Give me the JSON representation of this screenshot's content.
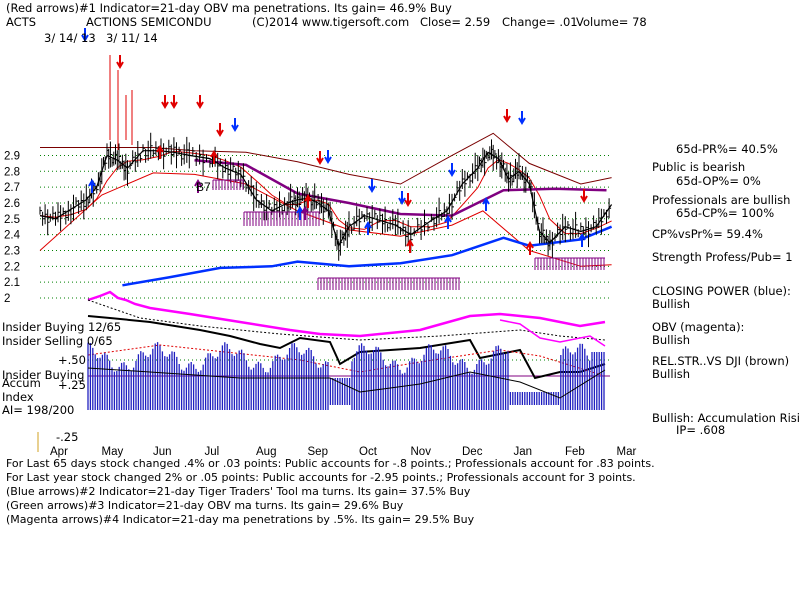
{
  "header": {
    "line1": "(Red arrows)#1 Indicator=21-day OBV ma penetrations. Its gain= 46.9% Buy",
    "ticker": "ACTS",
    "company": "ACTIONS SEMICONDU",
    "copyright": "(C)2014 www.tigersoft.com",
    "close": "Close=  2.59",
    "change": "Change= .01",
    "volume": "Volume= 78",
    "start_date": "3/ 14/ 13",
    "end_date": "3/ 11/ 14"
  },
  "colors": {
    "price": "#000000",
    "red": "#e00000",
    "blue": "#0030ff",
    "magenta": "#ff00ff",
    "purple": "#800080",
    "maroon": "#7a0000",
    "grid": "#008000",
    "accum": "#2020c0"
  },
  "left_labels": {
    "insider_buying": "Insider Buying 12/65",
    "insider_selling": "Insider Selling 0/65",
    "plus50": "+.50",
    "insider_buying2": "Insider Buying",
    "accum": "Accum",
    "plus25": "+.25",
    "index": "Index",
    "ai": "AI= 198/200",
    "minus25": "-.25"
  },
  "chart_labels": {
    "b7": "B7"
  },
  "right_panel": {
    "pr": "65d-PR%= 40.5%",
    "public": "Public is bearish",
    "op": "65d-OP%= 0%",
    "professionals": "Professionals are bullish",
    "cp": "65d-CP%= 100%",
    "cpvspr": "CP%vsPr%=  59.4%",
    "strength": "Strength Profess/Pub= 1",
    "closing_power": "CLOSING POWER (blue):",
    "closing_power_val": "Bullish",
    "obv": "OBV (magenta):",
    "obv_val": "Bullish",
    "relstr": "REL.STR..VS DJI (brown)",
    "relstr_val": "Bullish",
    "accum_risi": "Bullish: Accumulation Risi",
    "ip": "IP=  .608"
  },
  "footer": {
    "line1": "For Last 65 days stock changed  .4% or  .03 points:  Public accounts for -.8 points.;  Professionals account for  .83 points.",
    "line2": "For Last year stock changed  2% or  .05 points:  Public accounts for -2.95 points.;  Professionals account for  3 points.",
    "line3": "(Blue arrows)#2 Indicator=21-day Tiger Traders' Tool ma turns. Its gain= 37.5% Buy",
    "line4": "(Green arrows)#3 Indicator=21-day OBV ma turns. Its gain= 29.6% Buy",
    "line5": "(Magenta arrows)#4 Indicator=21-day ma penetrations by .5%. Its gain= 29.5% Buy"
  },
  "chart_data": {
    "type": "line",
    "title": "ACTS  ACTIONS SEMICONDU",
    "x_labels": [
      "Apr",
      "May",
      "Jun",
      "Jul",
      "Aug",
      "Sep",
      "Oct",
      "Nov",
      "Dec",
      "Jan",
      "Feb",
      "Mar"
    ],
    "y_ticks": [
      2.9,
      2.8,
      2.7,
      2.6,
      2.5,
      2.4,
      2.3,
      2.2,
      2.1,
      2
    ],
    "ylim": [
      2.0,
      2.96
    ],
    "grid": true,
    "series": [
      {
        "name": "price",
        "x": [
          0,
          0.3,
          0.6,
          0.9,
          1.1,
          1.3,
          1.5,
          1.7,
          2.0,
          2.3,
          2.6,
          2.9,
          3.3,
          3.6,
          3.9,
          4.2,
          4.5,
          4.8,
          5.0,
          5.2,
          5.4,
          5.6,
          5.8,
          6.0,
          6.3,
          6.6,
          6.9,
          7.2,
          7.6,
          7.9,
          8.2,
          8.5,
          8.7,
          8.9,
          9.1,
          9.3,
          9.5,
          9.7,
          9.9,
          10.2,
          10.5,
          10.8,
          11.1
        ],
        "values": [
          2.52,
          2.5,
          2.56,
          2.62,
          2.7,
          2.9,
          2.87,
          2.82,
          2.93,
          2.93,
          2.92,
          2.9,
          2.88,
          2.82,
          2.78,
          2.62,
          2.55,
          2.6,
          2.62,
          2.63,
          2.6,
          2.55,
          2.33,
          2.45,
          2.52,
          2.49,
          2.46,
          2.4,
          2.49,
          2.55,
          2.72,
          2.82,
          2.92,
          2.88,
          2.75,
          2.8,
          2.72,
          2.42,
          2.35,
          2.45,
          2.42,
          2.45,
          2.59
        ]
      },
      {
        "name": "21-day ma (purple)",
        "x": [
          3.0,
          4.0,
          5.0,
          6.0,
          7.0,
          8.0,
          9.0,
          10.0,
          11.0
        ],
        "values": [
          2.87,
          2.84,
          2.66,
          2.6,
          2.53,
          2.52,
          2.68,
          2.69,
          2.68
        ]
      },
      {
        "name": "band upper",
        "x": [
          0,
          1.2,
          2.2,
          3.0,
          4.0,
          5.0,
          6.0,
          7.0,
          8.0,
          8.8,
          9.5,
          10.5,
          11.1
        ],
        "values": [
          2.95,
          2.95,
          2.95,
          2.93,
          2.92,
          2.86,
          2.78,
          2.72,
          2.9,
          3.04,
          2.85,
          2.72,
          2.76
        ]
      },
      {
        "name": "band lower",
        "x": [
          0,
          1.2,
          2.2,
          3.0,
          4.0,
          5.0,
          6.0,
          7.0,
          8.0,
          8.6,
          9.5,
          10.5,
          11.1
        ],
        "values": [
          2.3,
          2.65,
          2.79,
          2.78,
          2.72,
          2.55,
          2.43,
          2.39,
          2.46,
          2.55,
          2.3,
          2.2,
          2.21
        ]
      },
      {
        "name": "closing power (blue)",
        "x": [
          1.6,
          2.5,
          3.5,
          4.5,
          5.0,
          6.0,
          7.0,
          8.0,
          9.0,
          9.5,
          10.5,
          11.1
        ],
        "values": [
          2.08,
          2.13,
          2.19,
          2.2,
          2.23,
          2.2,
          2.22,
          2.27,
          2.38,
          2.33,
          2.37,
          2.45
        ]
      }
    ]
  }
}
